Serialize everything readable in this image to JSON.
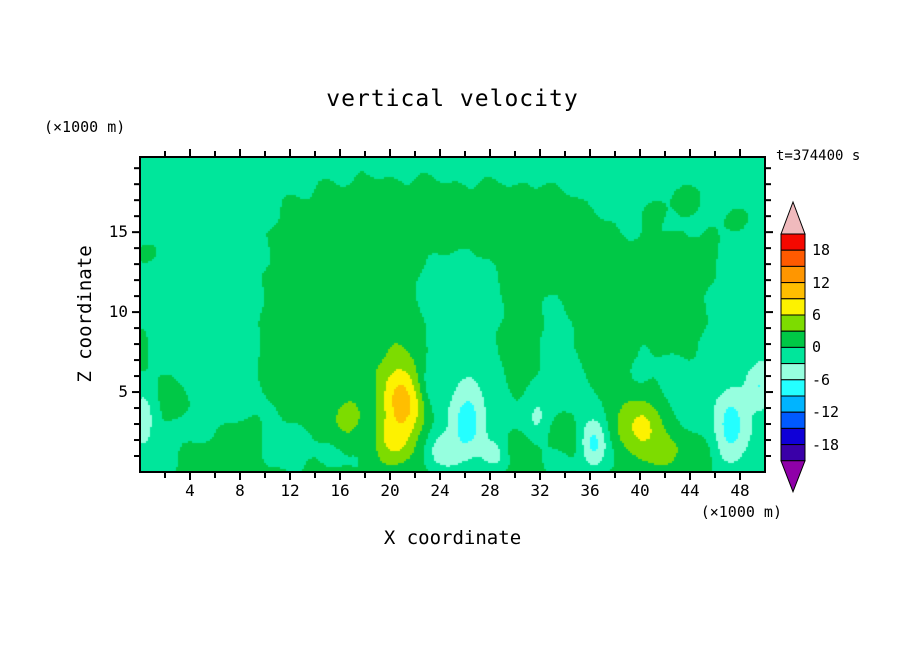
{
  "chart_data": {
    "type": "heatmap",
    "title": "vertical velocity",
    "xlabel": "X coordinate",
    "ylabel": "Z coordinate",
    "x_unit_label": "(×1000 m)",
    "y_unit_label": "(×1000 m)",
    "time_label": "t=374400 s",
    "xlim": [
      0,
      50
    ],
    "ylim": [
      0,
      19.7
    ],
    "x_major_ticks": [
      4,
      8,
      12,
      16,
      20,
      24,
      28,
      32,
      36,
      40,
      44,
      48
    ],
    "x_minor_step": 2,
    "y_major_ticks": [
      5,
      10,
      15
    ],
    "y_minor_step": 1,
    "colorbar": {
      "band_step": 3,
      "labels": [
        "18",
        "12",
        "6",
        "0",
        "-6",
        "-12",
        "-18"
      ],
      "top_arrow_color": "#f0babd",
      "bottom_arrow_color": "#8f00a8",
      "bands_top_to_bottom": [
        {
          "min": 18,
          "color": "#f50800"
        },
        {
          "min": 15,
          "color": "#ff5a00"
        },
        {
          "min": 12,
          "color": "#ff9600"
        },
        {
          "min": 9,
          "color": "#ffbe00"
        },
        {
          "min": 6,
          "color": "#fdf200"
        },
        {
          "min": 3,
          "color": "#7ddc00"
        },
        {
          "min": 0,
          "color": "#00c846"
        },
        {
          "min": -3,
          "color": "#00e69b"
        },
        {
          "min": -6,
          "color": "#96ffdf"
        },
        {
          "min": -9,
          "color": "#24ffff"
        },
        {
          "min": -12,
          "color": "#00b4ff"
        },
        {
          "min": -15,
          "color": "#005aff"
        },
        {
          "min": -18,
          "color": "#0f00d7"
        },
        {
          "min": -21,
          "color": "#3a00a8"
        }
      ]
    },
    "field": {
      "base": -1.2,
      "noise_amp": 0.3,
      "blobs": [
        [
          16,
          12,
          4.5,
          3.5,
          2.4
        ],
        [
          23.5,
          15.8,
          7.5,
          2.0,
          2.3
        ],
        [
          13,
          8.5,
          2.0,
          2.5,
          2.2
        ],
        [
          19.5,
          9,
          2.8,
          2.0,
          1.8
        ],
        [
          29.5,
          11,
          2.2,
          3.2,
          1.9
        ],
        [
          33,
          14.5,
          2.8,
          2.0,
          1.8
        ],
        [
          26.5,
          11,
          2.6,
          2.2,
          -1.9
        ],
        [
          39.5,
          11.5,
          3.2,
          2.5,
          2.0
        ],
        [
          43,
          9,
          2.2,
          1.8,
          1.6
        ],
        [
          44.5,
          13.5,
          2.2,
          1.4,
          1.6
        ],
        [
          36.5,
          8.5,
          1.6,
          1.8,
          1.7
        ],
        [
          44,
          17.2,
          1.2,
          0.8,
          1.8
        ],
        [
          47.6,
          15.8,
          0.9,
          0.7,
          1.7
        ],
        [
          41.3,
          16.3,
          0.7,
          0.6,
          1.5
        ],
        [
          0.3,
          13.7,
          1.1,
          0.55,
          1.9
        ],
        [
          0.2,
          7.6,
          0.7,
          1.3,
          1.8
        ],
        [
          17.5,
          6,
          1.4,
          2.2,
          2.0
        ],
        [
          14.5,
          4,
          1.4,
          1.8,
          1.9
        ],
        [
          11.5,
          5.5,
          1.4,
          1.8,
          1.7
        ],
        [
          30.5,
          7,
          1.2,
          2.0,
          1.8
        ],
        [
          21,
          4.3,
          1.3,
          1.9,
          11.5
        ],
        [
          20,
          1.6,
          1.1,
          1.0,
          4.5
        ],
        [
          16.6,
          3.2,
          0.9,
          0.9,
          4.2
        ],
        [
          40,
          2.8,
          1.5,
          1.4,
          8.0
        ],
        [
          41.9,
          1.2,
          0.9,
          0.8,
          4.0
        ],
        [
          34,
          2.2,
          1.0,
          1.2,
          3.4
        ],
        [
          30.5,
          1.4,
          1.1,
          0.9,
          3.0
        ],
        [
          8,
          1.8,
          1.3,
          1.1,
          3.0
        ],
        [
          4.8,
          0.9,
          1.1,
          0.8,
          2.4
        ],
        [
          2.5,
          4.5,
          1.1,
          1.4,
          2.2
        ],
        [
          44.5,
          1.4,
          1.2,
          0.9,
          2.8
        ],
        [
          37.5,
          5.5,
          1.1,
          1.6,
          1.9
        ],
        [
          26.2,
          3.2,
          1.0,
          1.7,
          -6.3
        ],
        [
          24.3,
          1.2,
          0.8,
          0.8,
          -4.6
        ],
        [
          28.4,
          1.0,
          0.8,
          0.7,
          -3.4
        ],
        [
          23.2,
          5.6,
          0.8,
          1.0,
          -3.0
        ],
        [
          36.3,
          1.8,
          0.8,
          1.2,
          -5.8
        ],
        [
          33.4,
          0.6,
          0.7,
          0.6,
          -2.8
        ],
        [
          31.8,
          3.4,
          0.7,
          1.0,
          -2.8
        ],
        [
          47.3,
          2.8,
          1.0,
          1.6,
          -6.2
        ],
        [
          49.6,
          5.5,
          0.7,
          1.1,
          -4.6
        ],
        [
          0.3,
          3.3,
          0.6,
          1.1,
          -4.2
        ],
        [
          25,
          -0.8,
          26,
          1.1,
          1.9
        ]
      ]
    }
  }
}
